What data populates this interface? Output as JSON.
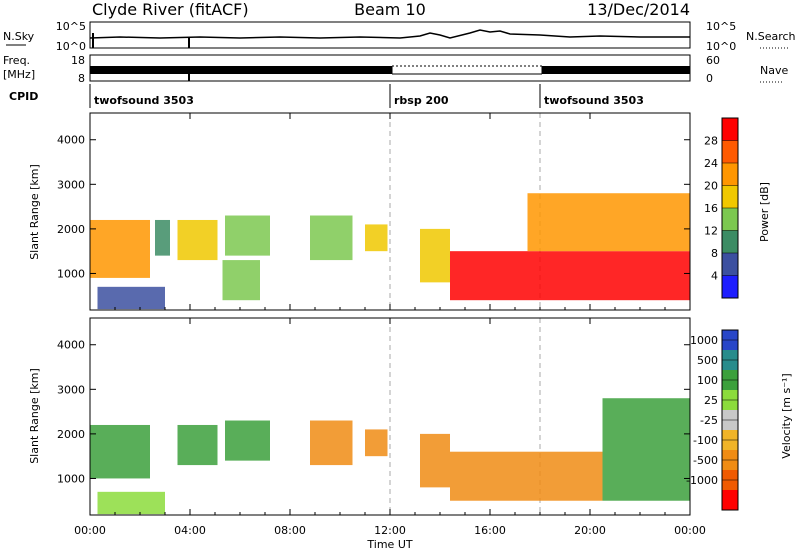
{
  "header": {
    "station": "Clyde River (fitACF)",
    "beam": "Beam 10",
    "date": "13/Dec/2014"
  },
  "nsky_panel": {
    "left_label": "N.Sky",
    "right_label": "N.Search",
    "left_ticks": [
      "10^5",
      "10^0"
    ],
    "right_ticks": [
      "10^5",
      "10^0"
    ]
  },
  "freq_panel": {
    "left_label_top": "Freq.",
    "left_label_unit": "[MHz]",
    "right_label": "Nave",
    "left_ticks": [
      "18",
      "8"
    ],
    "right_ticks": [
      "60",
      "0"
    ]
  },
  "cpid": {
    "label": "CPID",
    "segments": [
      {
        "name": "twofsound 3503",
        "start_hour": 0,
        "end_hour": 12
      },
      {
        "name": "rbsp 200",
        "start_hour": 12,
        "end_hour": 18
      },
      {
        "name": "twofsound 3503",
        "start_hour": 18,
        "end_hour": 24
      }
    ]
  },
  "power_panel": {
    "ylabel": "Slant Range [km]",
    "cbar_label": "Power [dB]",
    "cbar_ticks": [
      "28",
      "24",
      "20",
      "16",
      "12",
      "8",
      "4"
    ],
    "cbar_colors": [
      "#ff0000",
      "#ff5a00",
      "#ff9600",
      "#f0c800",
      "#7cc850",
      "#3c8c64",
      "#3c50a0",
      "#1e1eff"
    ]
  },
  "velocity_panel": {
    "ylabel": "Slant Range [km]",
    "cbar_label": "Velocity [m s⁻¹]",
    "cbar_ticks": [
      "1000",
      "500",
      "100",
      "25",
      "-25",
      "-100",
      "-500",
      "-1000"
    ],
    "cbar_colors": [
      "#2846c8",
      "#288c8c",
      "#3ca03c",
      "#8cdc3c",
      "#c8c8c8",
      "#f0b428",
      "#f08c14",
      "#f05a00",
      "#ff0000"
    ]
  },
  "xaxis": {
    "label": "Time UT",
    "ticks": [
      "00:00",
      "04:00",
      "08:00",
      "12:00",
      "16:00",
      "20:00",
      "00:00"
    ]
  },
  "chart_data": [
    {
      "type": "heatmap",
      "title": "Power",
      "xlabel": "Time UT",
      "ylabel": "Slant Range [km]",
      "xlim": [
        0,
        24
      ],
      "ylim": [
        180,
        4600
      ],
      "zlabel": "Power [dB]",
      "zlim": [
        0,
        32
      ],
      "regions": [
        {
          "t_start": 0.0,
          "t_end": 2.4,
          "range_start": 900,
          "range_end": 2200,
          "typical_value": 22
        },
        {
          "t_start": 0.3,
          "t_end": 3.0,
          "range_start": 200,
          "range_end": 700,
          "typical_value": 8
        },
        {
          "t_start": 2.6,
          "t_end": 3.2,
          "range_start": 1400,
          "range_end": 2200,
          "typical_value": 12
        },
        {
          "t_start": 3.5,
          "t_end": 5.1,
          "range_start": 1300,
          "range_end": 2200,
          "typical_value": 18
        },
        {
          "t_start": 5.3,
          "t_end": 6.8,
          "range_start": 400,
          "range_end": 1300,
          "typical_value": 16
        },
        {
          "t_start": 5.4,
          "t_end": 7.2,
          "range_start": 1400,
          "range_end": 2300,
          "typical_value": 14
        },
        {
          "t_start": 8.8,
          "t_end": 10.5,
          "range_start": 1300,
          "range_end": 2300,
          "typical_value": 16
        },
        {
          "t_start": 11.0,
          "t_end": 11.9,
          "range_start": 1500,
          "range_end": 2100,
          "typical_value": 18
        },
        {
          "t_start": 13.2,
          "t_end": 14.4,
          "range_start": 800,
          "range_end": 2000,
          "typical_value": 20
        },
        {
          "t_start": 14.4,
          "t_end": 24.0,
          "range_start": 400,
          "range_end": 1500,
          "typical_value": 30
        },
        {
          "t_start": 17.5,
          "t_end": 24.0,
          "range_start": 1500,
          "range_end": 2800,
          "typical_value": 24
        }
      ]
    },
    {
      "type": "heatmap",
      "title": "Velocity",
      "xlabel": "Time UT",
      "ylabel": "Slant Range [km]",
      "xlim": [
        0,
        24
      ],
      "ylim": [
        180,
        4600
      ],
      "zlabel": "Velocity [m s⁻¹]",
      "zlim": [
        -1000,
        1000
      ],
      "regions": [
        {
          "t_start": 0.0,
          "t_end": 2.4,
          "range_start": 1000,
          "range_end": 2200,
          "typical_value": 300
        },
        {
          "t_start": 0.3,
          "t_end": 3.0,
          "range_start": 200,
          "range_end": 700,
          "typical_value": 50
        },
        {
          "t_start": 3.5,
          "t_end": 5.1,
          "range_start": 1300,
          "range_end": 2200,
          "typical_value": 200
        },
        {
          "t_start": 5.4,
          "t_end": 7.2,
          "range_start": 1400,
          "range_end": 2300,
          "typical_value": 400
        },
        {
          "t_start": 8.8,
          "t_end": 10.5,
          "range_start": 1300,
          "range_end": 2300,
          "typical_value": -400
        },
        {
          "t_start": 11.0,
          "t_end": 11.9,
          "range_start": 1500,
          "range_end": 2100,
          "typical_value": -400
        },
        {
          "t_start": 13.2,
          "t_end": 14.4,
          "range_start": 800,
          "range_end": 2000,
          "typical_value": -500
        },
        {
          "t_start": 14.4,
          "t_end": 20.5,
          "range_start": 500,
          "range_end": 1600,
          "typical_value": -300
        },
        {
          "t_start": 20.5,
          "t_end": 24.0,
          "range_start": 500,
          "range_end": 2800,
          "typical_value": 150
        }
      ]
    }
  ]
}
